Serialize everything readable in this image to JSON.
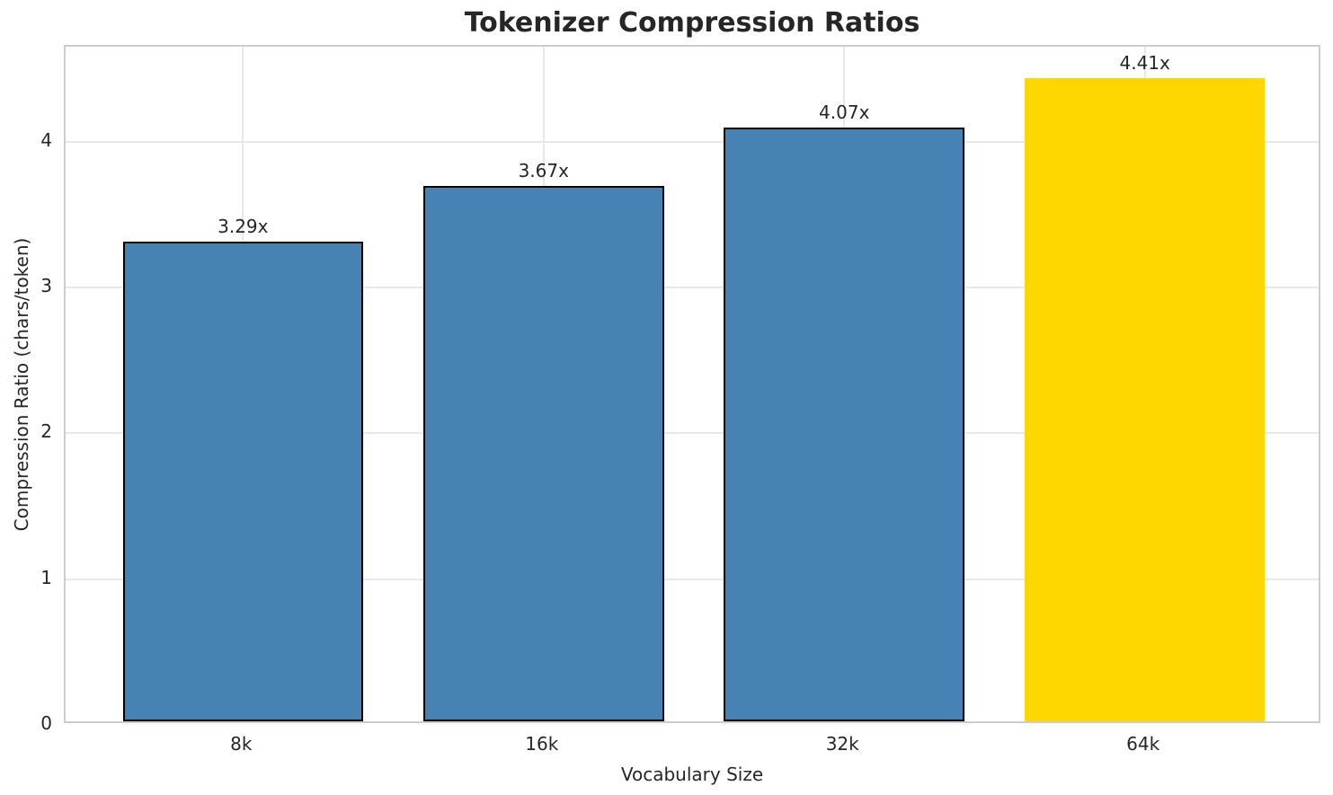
{
  "chart_data": {
    "type": "bar",
    "title": "Tokenizer Compression Ratios",
    "xlabel": "Vocabulary Size",
    "ylabel": "Compression Ratio (chars/token)",
    "categories": [
      "8k",
      "16k",
      "32k",
      "64k"
    ],
    "values": [
      3.29,
      3.67,
      4.07,
      4.41
    ],
    "bar_value_labels": [
      "3.29x",
      "3.67x",
      "4.07x",
      "4.41x"
    ],
    "bar_colors": [
      "#4682B4",
      "#4682B4",
      "#4682B4",
      "#FFD700"
    ],
    "bar_edge_colors": [
      "#000000",
      "#000000",
      "#000000",
      "none"
    ],
    "highlighted_category": "64k",
    "yticks": [
      0,
      1,
      2,
      3,
      4
    ],
    "ylim": [
      0,
      4.65
    ],
    "grid": true,
    "legend": false
  },
  "colors": {
    "bar_default": "#4682B4",
    "bar_highlight": "#FFD700",
    "bar_edge": "#000000",
    "grid": "#e8e8e8",
    "spine": "#cccccc",
    "text": "#262626",
    "background": "#ffffff"
  }
}
